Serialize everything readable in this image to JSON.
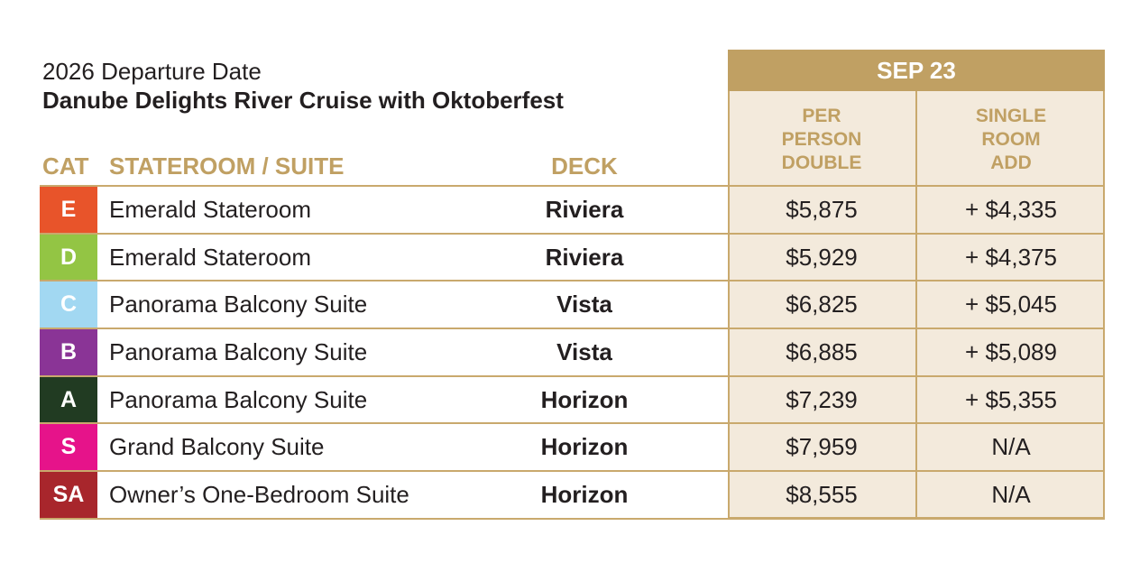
{
  "heading": {
    "departure_label": "2026 Departure Date",
    "cruise_name": "Danube Delights River Cruise with Oktoberfest"
  },
  "columns": {
    "cat": "CAT",
    "stateroom": "STATEROOM / SUITE",
    "deck": "DECK",
    "date": "SEP 23",
    "per_person_double": [
      "PER",
      "PERSON",
      "DOUBLE"
    ],
    "single_room_add": [
      "SINGLE",
      "ROOM",
      "ADD"
    ]
  },
  "rows": [
    {
      "cat": "E",
      "color": "#e8542a",
      "stateroom": "Emerald Stateroom",
      "deck": "Riviera",
      "ppd": "$5,875",
      "sra": "+ $4,335"
    },
    {
      "cat": "D",
      "color": "#93c544",
      "stateroom": "Emerald Stateroom",
      "deck": "Riviera",
      "ppd": "$5,929",
      "sra": "+ $4,375"
    },
    {
      "cat": "C",
      "color": "#a2d8f2",
      "stateroom": "Panorama Balcony Suite",
      "deck": "Vista",
      "ppd": "$6,825",
      "sra": "+ $5,045"
    },
    {
      "cat": "B",
      "color": "#8a3496",
      "stateroom": "Panorama Balcony Suite",
      "deck": "Vista",
      "ppd": "$6,885",
      "sra": "+ $5,089"
    },
    {
      "cat": "A",
      "color": "#213b22",
      "stateroom": "Panorama Balcony Suite",
      "deck": "Horizon",
      "ppd": "$7,239",
      "sra": "+ $5,355"
    },
    {
      "cat": "S",
      "color": "#e6138a",
      "stateroom": "Grand Balcony Suite",
      "deck": "Horizon",
      "ppd": "$7,959",
      "sra": "N/A"
    },
    {
      "cat": "SA",
      "color": "#a8262c",
      "stateroom": "Owner’s One-Bedroom Suite",
      "deck": "Horizon",
      "ppd": "$8,555",
      "sra": "N/A"
    }
  ],
  "colors": {
    "gold": "#c0a063",
    "gold_line": "#c9a96d",
    "panel_bg": "#f3eadc",
    "text": "#231f20"
  }
}
